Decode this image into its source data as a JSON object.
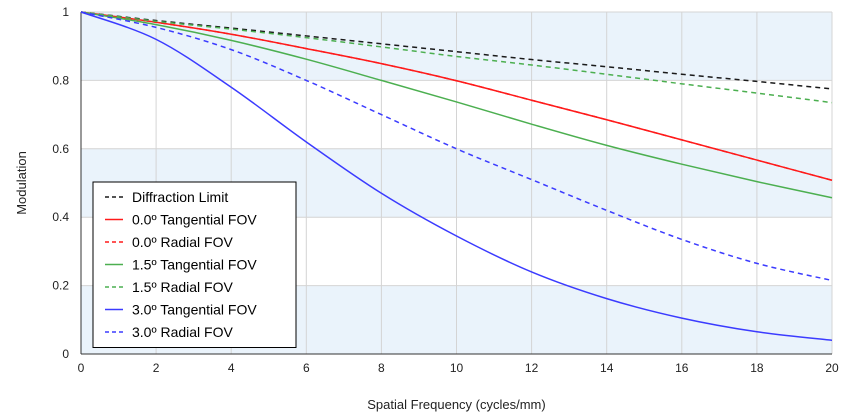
{
  "chart_data": {
    "type": "line",
    "xlabel": "Spatial Frequency (cycles/mm)",
    "ylabel": "Modulation",
    "xlim": [
      0,
      20
    ],
    "ylim": [
      0,
      1
    ],
    "x_ticks": [
      "0",
      "2",
      "4",
      "6",
      "8",
      "10",
      "12",
      "14",
      "16",
      "18",
      "20"
    ],
    "y_ticks": [
      "0",
      "0.2",
      "0.4",
      "0.6",
      "0.8",
      "1"
    ],
    "grid": true,
    "legend_position": "bottom-left",
    "x": [
      0,
      2,
      4,
      6,
      8,
      10,
      12,
      14,
      16,
      18,
      20
    ],
    "series": [
      {
        "name": "Diffraction Limit",
        "color": "#1a1a1a",
        "dash": "dashed",
        "values": [
          1.0,
          0.975,
          0.953,
          0.93,
          0.907,
          0.884,
          0.861,
          0.84,
          0.818,
          0.797,
          0.775
        ]
      },
      {
        "name": "0.0º Tangential FOV",
        "color": "#ff1a1a",
        "dash": "solid",
        "values": [
          1.0,
          0.97,
          0.935,
          0.893,
          0.849,
          0.799,
          0.742,
          0.685,
          0.626,
          0.567,
          0.508
        ]
      },
      {
        "name": "0.0º Radial FOV",
        "color": "#ff1a1a",
        "dash": "dashed",
        "values": [
          1.0,
          0.97,
          0.935,
          0.893,
          0.849,
          0.799,
          0.742,
          0.685,
          0.626,
          0.567,
          0.508
        ]
      },
      {
        "name": "1.5º Tangential FOV",
        "color": "#4caf50",
        "dash": "solid",
        "values": [
          1.0,
          0.963,
          0.917,
          0.862,
          0.8,
          0.737,
          0.672,
          0.61,
          0.555,
          0.504,
          0.457
        ]
      },
      {
        "name": "1.5º Radial FOV",
        "color": "#4caf50",
        "dash": "dashed",
        "values": [
          1.0,
          0.973,
          0.95,
          0.925,
          0.898,
          0.87,
          0.845,
          0.818,
          0.79,
          0.763,
          0.735
        ]
      },
      {
        "name": "3.0º Tangential FOV",
        "color": "#3b3bff",
        "dash": "solid",
        "values": [
          1.0,
          0.92,
          0.78,
          0.62,
          0.47,
          0.345,
          0.24,
          0.162,
          0.105,
          0.065,
          0.04
        ]
      },
      {
        "name": "3.0º Radial FOV",
        "color": "#3b3bff",
        "dash": "dashed",
        "values": [
          1.0,
          0.955,
          0.89,
          0.8,
          0.7,
          0.6,
          0.51,
          0.42,
          0.335,
          0.265,
          0.215
        ]
      }
    ]
  }
}
